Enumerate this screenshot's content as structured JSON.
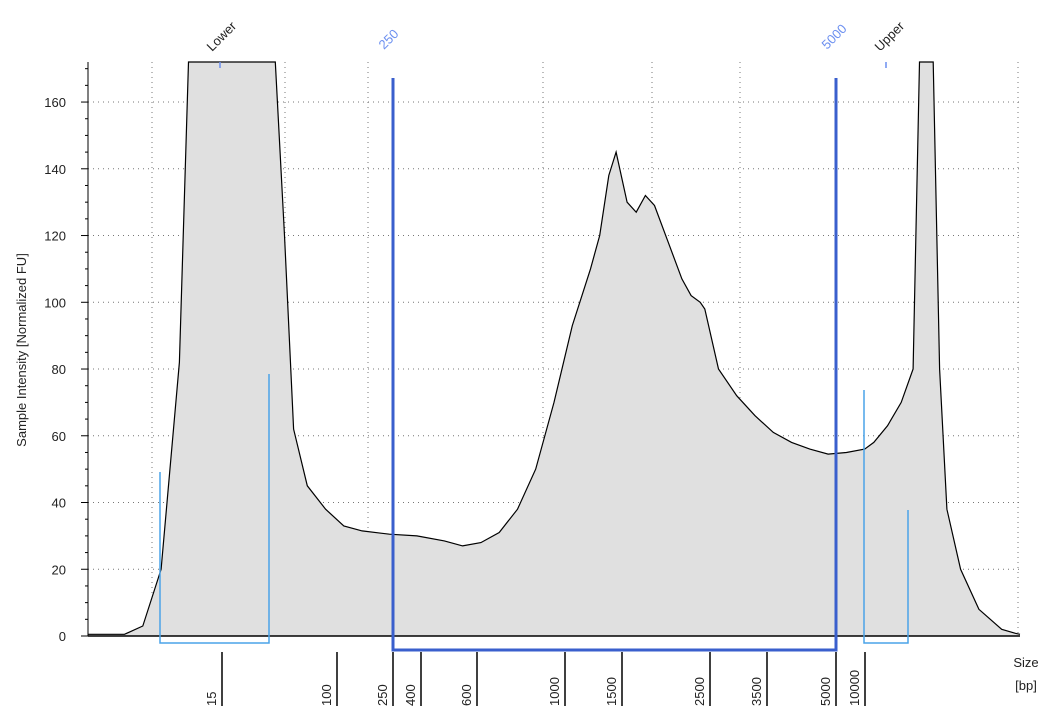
{
  "chart_data": {
    "type": "area",
    "ylabel": "Sample Intensity [Normalized FU]",
    "xlabel_line1": "Size",
    "xlabel_line2": "[bp]",
    "ylim": [
      0,
      172
    ],
    "y_ticks": [
      0,
      20,
      40,
      60,
      80,
      100,
      120,
      140,
      160
    ],
    "x_ticks": [
      {
        "label": "15"
      },
      {
        "label": "100"
      },
      {
        "label": "250"
      },
      {
        "label": "400"
      },
      {
        "label": "600"
      },
      {
        "label": "1000"
      },
      {
        "label": "1500"
      },
      {
        "label": "2500"
      },
      {
        "label": "3500"
      },
      {
        "label": "5000"
      },
      {
        "label": "10000"
      }
    ],
    "grid": true,
    "fill_color": "#e0e0e0",
    "line_color": "#000000",
    "marker_color": "#3a5fcd",
    "marker_label_color": "#6b8ff0",
    "peak_box_color": "#4aa3e8",
    "peaks": [
      {
        "label": "Lower",
        "size_bp": 15
      },
      {
        "label": "Upper",
        "size_bp": 10000
      }
    ],
    "region_markers": [
      {
        "label": "250",
        "size_bp": 250
      },
      {
        "label": "5000",
        "size_bp": 5000
      }
    ],
    "series": [
      {
        "points": [
          {
            "x": 0,
            "y": 0.5
          },
          {
            "x": 40,
            "y": 0.5
          },
          {
            "x": 60,
            "y": 3
          },
          {
            "x": 80,
            "y": 20
          },
          {
            "x": 100,
            "y": 82
          },
          {
            "x": 110,
            "y": 172
          },
          {
            "x": 205,
            "y": 172
          },
          {
            "x": 215,
            "y": 120
          },
          {
            "x": 225,
            "y": 62
          },
          {
            "x": 240,
            "y": 45
          },
          {
            "x": 260,
            "y": 38
          },
          {
            "x": 280,
            "y": 33
          },
          {
            "x": 300,
            "y": 31.5
          },
          {
            "x": 330,
            "y": 30.5
          },
          {
            "x": 360,
            "y": 30
          },
          {
            "x": 390,
            "y": 28.5
          },
          {
            "x": 410,
            "y": 27
          },
          {
            "x": 430,
            "y": 28
          },
          {
            "x": 450,
            "y": 31
          },
          {
            "x": 470,
            "y": 38
          },
          {
            "x": 490,
            "y": 50
          },
          {
            "x": 510,
            "y": 70
          },
          {
            "x": 530,
            "y": 93
          },
          {
            "x": 550,
            "y": 110
          },
          {
            "x": 560,
            "y": 120
          },
          {
            "x": 570,
            "y": 138
          },
          {
            "x": 578,
            "y": 145
          },
          {
            "x": 590,
            "y": 130
          },
          {
            "x": 600,
            "y": 127
          },
          {
            "x": 610,
            "y": 132
          },
          {
            "x": 620,
            "y": 129
          },
          {
            "x": 635,
            "y": 118
          },
          {
            "x": 650,
            "y": 107
          },
          {
            "x": 660,
            "y": 102
          },
          {
            "x": 670,
            "y": 100
          },
          {
            "x": 675,
            "y": 98
          },
          {
            "x": 690,
            "y": 80
          },
          {
            "x": 710,
            "y": 72
          },
          {
            "x": 730,
            "y": 66
          },
          {
            "x": 750,
            "y": 61
          },
          {
            "x": 770,
            "y": 58
          },
          {
            "x": 790,
            "y": 56
          },
          {
            "x": 810,
            "y": 54.5
          },
          {
            "x": 830,
            "y": 55
          },
          {
            "x": 850,
            "y": 56
          },
          {
            "x": 860,
            "y": 58
          },
          {
            "x": 875,
            "y": 63
          },
          {
            "x": 890,
            "y": 70
          },
          {
            "x": 903,
            "y": 80
          },
          {
            "x": 910,
            "y": 172
          },
          {
            "x": 925,
            "y": 172
          },
          {
            "x": 932,
            "y": 80
          },
          {
            "x": 940,
            "y": 38
          },
          {
            "x": 955,
            "y": 20
          },
          {
            "x": 975,
            "y": 8
          },
          {
            "x": 1000,
            "y": 2
          },
          {
            "x": 1015,
            "y": 0.8
          },
          {
            "x": 1020,
            "y": 0.5
          }
        ]
      }
    ]
  }
}
